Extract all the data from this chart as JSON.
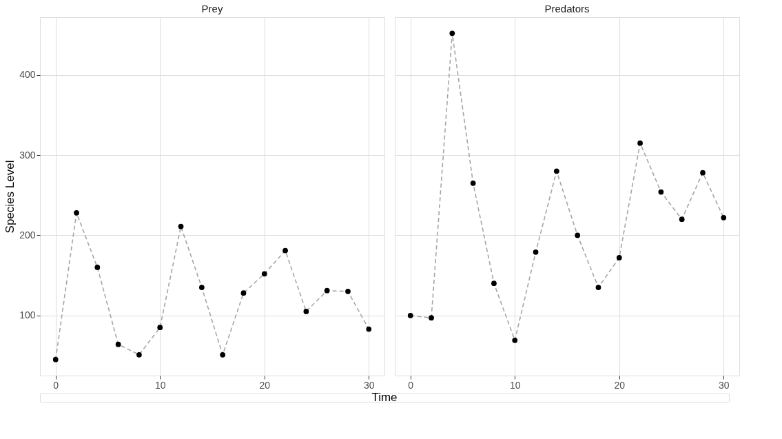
{
  "chart_data": [
    {
      "type": "line",
      "title": "Prey",
      "xlabel": "Time",
      "ylabel": "Species Level",
      "x": [
        0,
        2,
        4,
        6,
        8,
        10,
        12,
        14,
        16,
        18,
        20,
        22,
        24,
        26,
        28,
        30
      ],
      "series": [
        {
          "color": "#a6a6a6",
          "line_style": "dashed",
          "marker": "none",
          "values": [
            45,
            228,
            160,
            64,
            51,
            85,
            211,
            135,
            51,
            128,
            152,
            181,
            105,
            131,
            130,
            83
          ]
        },
        {
          "type": "scatter",
          "color": "#000000",
          "marker": "circle",
          "values": [
            45,
            228,
            160,
            64,
            51,
            85,
            211,
            135,
            51,
            128,
            152,
            181,
            105,
            131,
            130,
            83
          ]
        }
      ],
      "xlim": [
        -1.5,
        31.5
      ],
      "ylim": [
        25,
        472
      ],
      "xticks": [
        0,
        10,
        20,
        30
      ],
      "yticks": [
        100,
        200,
        300,
        400
      ],
      "grid": true
    },
    {
      "type": "line",
      "title": "Predators",
      "x": [
        0,
        2,
        4,
        6,
        8,
        10,
        12,
        14,
        16,
        18,
        20,
        22,
        24,
        26,
        28,
        30
      ],
      "series": [
        {
          "color": "#a6a6a6",
          "line_style": "dashed",
          "marker": "none",
          "values": [
            100,
            97,
            452,
            265,
            140,
            69,
            179,
            280,
            200,
            135,
            172,
            315,
            254,
            220,
            278,
            222
          ]
        },
        {
          "type": "scatter",
          "color": "#000000",
          "marker": "circle",
          "values": [
            100,
            97,
            452,
            265,
            140,
            69,
            179,
            280,
            200,
            135,
            172,
            315,
            254,
            220,
            278,
            222
          ]
        }
      ],
      "xlim": [
        -1.5,
        31.5
      ],
      "ylim": [
        25,
        472
      ],
      "xticks": [
        0,
        10,
        20,
        30
      ],
      "yticks": [
        100,
        200,
        300,
        400
      ],
      "grid": true,
      "tick_labels": "x"
    }
  ]
}
